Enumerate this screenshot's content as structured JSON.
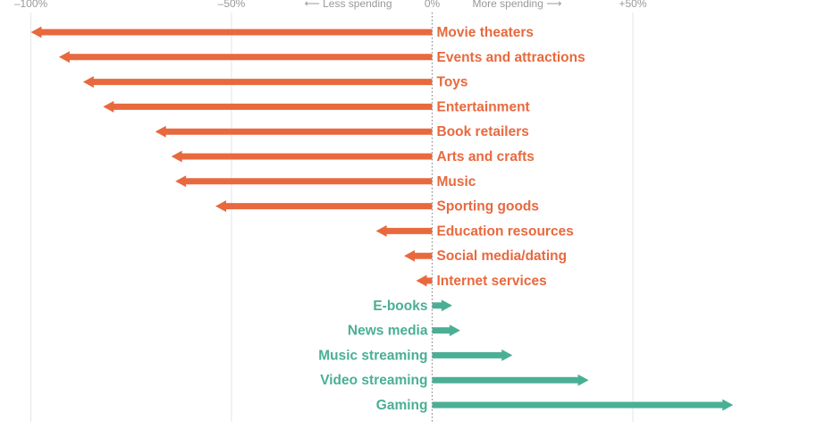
{
  "chart_data": {
    "type": "bar",
    "x_ticks": [
      {
        "value": -100,
        "label": "–100%"
      },
      {
        "value": -50,
        "label": "–50%"
      },
      {
        "value": 0,
        "label": "0%"
      },
      {
        "value": 50,
        "label": "+50%"
      },
      {
        "value": 100,
        "label": "+"
      }
    ],
    "direction_labels": {
      "less": "⟵ Less spending",
      "more": "More spending ⟶"
    },
    "xlim": [
      -100,
      100
    ],
    "grid": true,
    "colors": {
      "decrease": "#e8693e",
      "increase": "#4aaf95",
      "grid": "#e6e6e6",
      "zero_line": "#888888"
    },
    "categories": [
      "Movie theaters",
      "Events and attractions",
      "Toys",
      "Entertainment",
      "Book retailers",
      "Arts and crafts",
      "Music",
      "Sporting goods",
      "Education resources",
      "Social media/dating",
      "Internet services",
      "E-books",
      "News media",
      "Music streaming",
      "Video streaming",
      "Gaming"
    ],
    "values": [
      -100,
      -93,
      -87,
      -82,
      -69,
      -65,
      -64,
      -54,
      -14,
      -7,
      -4,
      5,
      7,
      20,
      39,
      75
    ]
  }
}
